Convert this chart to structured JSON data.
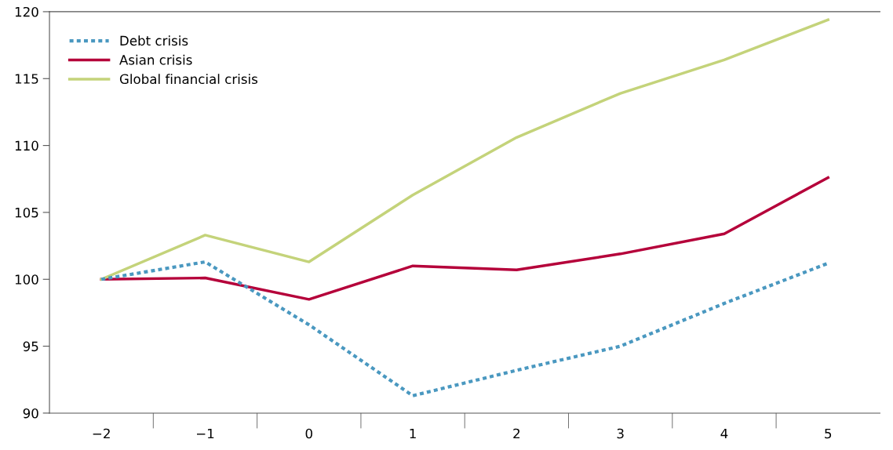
{
  "chart_data": {
    "type": "line",
    "categories": [
      "−2",
      "−1",
      "0",
      "1",
      "2",
      "3",
      "4",
      "5"
    ],
    "series": [
      {
        "name": "Debt crisis",
        "color": "#4a98c0",
        "line_style": "dotted",
        "values": [
          100.0,
          101.3,
          96.6,
          91.3,
          93.2,
          95.0,
          98.2,
          101.2
        ]
      },
      {
        "name": "Asian crisis",
        "color": "#b5003a",
        "line_style": "solid",
        "values": [
          100.0,
          100.1,
          98.5,
          101.0,
          100.7,
          101.9,
          103.4,
          107.6
        ]
      },
      {
        "name": "Global financial crisis",
        "color": "#c4d37a",
        "line_style": "solid",
        "values": [
          100.0,
          103.3,
          101.3,
          106.3,
          110.6,
          113.9,
          116.4,
          119.4
        ]
      }
    ],
    "ylim": [
      90,
      120
    ],
    "yticks": [
      90,
      95,
      100,
      105,
      110,
      115,
      120
    ],
    "grid": false,
    "legend": "top left",
    "marker": "none"
  }
}
